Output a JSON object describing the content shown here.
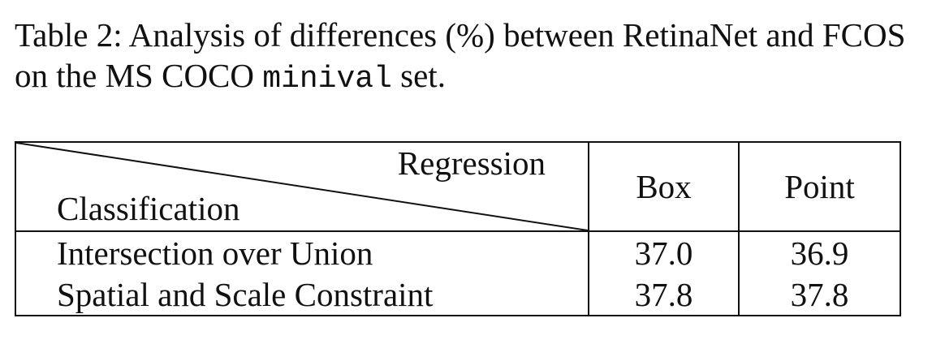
{
  "caption": {
    "prefix": "Table 2: Analysis of differences (%) between RetinaNet and FCOS on the MS COCO",
    "mono": "minival",
    "suffix": "set."
  },
  "table": {
    "header": {
      "regression_label": "Regression",
      "classification_label": "Classification",
      "columns": [
        "Box",
        "Point"
      ]
    },
    "rows": [
      {
        "label": "Intersection over Union",
        "values": [
          "37.0",
          "36.9"
        ]
      },
      {
        "label": "Spatial and Scale Constraint",
        "values": [
          "37.8",
          "37.8"
        ]
      }
    ]
  }
}
